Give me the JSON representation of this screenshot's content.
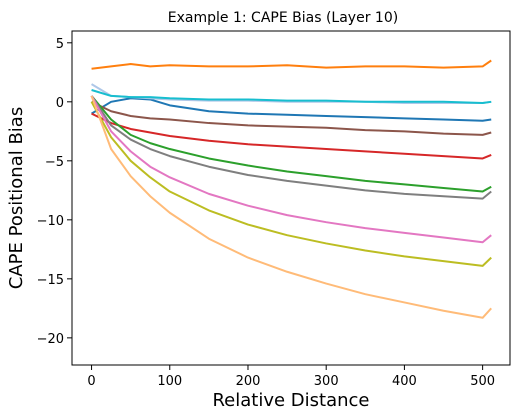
{
  "chart_data": {
    "type": "line",
    "title": "Example 1: CAPE Bias (Layer 10)",
    "xlabel": "Relative Distance",
    "ylabel": "CAPE Positional Bias",
    "xlim": [
      -25,
      535
    ],
    "ylim": [
      -22.3,
      6.0
    ],
    "xticks": [
      0,
      100,
      200,
      300,
      400,
      500
    ],
    "yticks": [
      5,
      0,
      -5,
      -10,
      -15,
      -20
    ],
    "xtick_labels": [
      "0",
      "100",
      "200",
      "300",
      "400",
      "500"
    ],
    "ytick_labels": [
      "5",
      "0",
      "−5",
      "−10",
      "−15",
      "−20"
    ],
    "grid": false,
    "legend": "none",
    "series": [
      {
        "color": "#ff7f0e",
        "x": [
          0,
          25,
          50,
          75,
          100,
          150,
          200,
          250,
          300,
          350,
          400,
          450,
          500,
          511
        ],
        "y": [
          2.8,
          3.0,
          3.2,
          3.0,
          3.1,
          3.0,
          3.0,
          3.1,
          2.9,
          3.0,
          3.0,
          2.9,
          3.0,
          3.5
        ]
      },
      {
        "color": "#1f77b4",
        "x": [
          0,
          25,
          50,
          75,
          100,
          150,
          200,
          250,
          300,
          350,
          400,
          450,
          500,
          511
        ],
        "y": [
          -1.0,
          0.0,
          0.3,
          0.2,
          -0.3,
          -0.8,
          -1.0,
          -1.1,
          -1.2,
          -1.3,
          -1.4,
          -1.5,
          -1.6,
          -1.5
        ]
      },
      {
        "color": "#aec7e8",
        "x": [
          0,
          25,
          50,
          75,
          100,
          150,
          200,
          250,
          300,
          350,
          400,
          450,
          500,
          511
        ],
        "y": [
          1.5,
          0.5,
          0.4,
          0.3,
          0.2,
          0.1,
          0.1,
          0.0,
          0.0,
          0.0,
          -0.1,
          -0.1,
          -0.1,
          0.0
        ]
      },
      {
        "color": "#17becf",
        "x": [
          0,
          25,
          50,
          75,
          100,
          150,
          200,
          250,
          300,
          350,
          400,
          450,
          500,
          511
        ],
        "y": [
          1.0,
          0.5,
          0.4,
          0.4,
          0.3,
          0.2,
          0.2,
          0.1,
          0.1,
          0.0,
          0.0,
          0.0,
          -0.1,
          0.0
        ]
      },
      {
        "color": "#8c564b",
        "x": [
          0,
          25,
          50,
          75,
          100,
          150,
          200,
          250,
          300,
          350,
          400,
          450,
          500,
          511
        ],
        "y": [
          0.0,
          -0.8,
          -1.2,
          -1.4,
          -1.5,
          -1.8,
          -2.0,
          -2.1,
          -2.2,
          -2.4,
          -2.5,
          -2.7,
          -2.8,
          -2.6
        ]
      },
      {
        "color": "#d62728",
        "x": [
          0,
          25,
          50,
          75,
          100,
          150,
          200,
          250,
          300,
          350,
          400,
          450,
          500,
          511
        ],
        "y": [
          -1.0,
          -1.8,
          -2.3,
          -2.6,
          -2.9,
          -3.3,
          -3.6,
          -3.8,
          -4.0,
          -4.2,
          -4.4,
          -4.6,
          -4.8,
          -4.5
        ]
      },
      {
        "color": "#2ca02c",
        "x": [
          0,
          25,
          50,
          75,
          100,
          150,
          200,
          250,
          300,
          350,
          400,
          450,
          500,
          511
        ],
        "y": [
          0.5,
          -1.5,
          -2.8,
          -3.5,
          -4.0,
          -4.8,
          -5.4,
          -5.9,
          -6.3,
          -6.7,
          -7.0,
          -7.3,
          -7.6,
          -7.2
        ]
      },
      {
        "color": "#7f7f7f",
        "x": [
          0,
          25,
          50,
          75,
          100,
          150,
          200,
          250,
          300,
          350,
          400,
          450,
          500,
          511
        ],
        "y": [
          0.5,
          -2.0,
          -3.2,
          -4.0,
          -4.6,
          -5.5,
          -6.2,
          -6.7,
          -7.1,
          -7.5,
          -7.8,
          -8.0,
          -8.2,
          -7.6
        ]
      },
      {
        "color": "#e377c2",
        "x": [
          0,
          25,
          50,
          75,
          100,
          150,
          200,
          250,
          300,
          350,
          400,
          450,
          500,
          511
        ],
        "y": [
          0.5,
          -2.5,
          -4.2,
          -5.5,
          -6.4,
          -7.8,
          -8.8,
          -9.6,
          -10.2,
          -10.7,
          -11.1,
          -11.5,
          -11.9,
          -11.3
        ]
      },
      {
        "color": "#bcbd22",
        "x": [
          0,
          25,
          50,
          75,
          100,
          150,
          200,
          250,
          300,
          350,
          400,
          450,
          500,
          511
        ],
        "y": [
          0.0,
          -3.0,
          -5.0,
          -6.4,
          -7.6,
          -9.2,
          -10.4,
          -11.3,
          -12.0,
          -12.6,
          -13.1,
          -13.5,
          -13.9,
          -13.2
        ]
      },
      {
        "color": "#ffbb78",
        "x": [
          0,
          25,
          50,
          75,
          100,
          150,
          200,
          250,
          300,
          350,
          400,
          450,
          500,
          511
        ],
        "y": [
          0.5,
          -4.0,
          -6.3,
          -8.0,
          -9.4,
          -11.6,
          -13.2,
          -14.4,
          -15.4,
          -16.3,
          -17.0,
          -17.7,
          -18.3,
          -17.5
        ]
      }
    ]
  }
}
